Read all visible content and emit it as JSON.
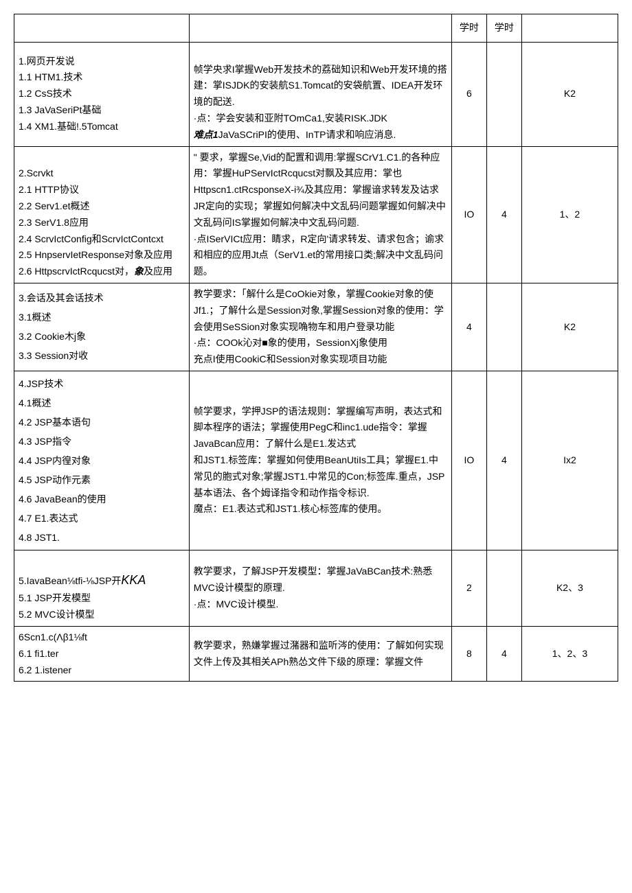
{
  "headers": {
    "col1": "",
    "col2": "",
    "col3": "学时",
    "col4": "学时",
    "col5": ""
  },
  "rows": [
    {
      "col1": "1.网页开发说\n1.1 HTM1.技术\n1.2 CsS技术\n1.3 JaVaSeriPt基础\n1.4 XM1.基础!.5Tomcat",
      "col2_parts": [
        {
          "text": "帧学央求I掌握Web开发技术的荔础知识和Web开发环境的搭建：掌ISJDK的安装航S1.Tomcat的安袋航置、IDEA开发环境的配送.\n·点：学会安装和亚附TOmCa1,安装RISK.JDK\n",
          "cls": ""
        },
        {
          "text": "难点1",
          "cls": "italic-bold"
        },
        {
          "text": "JaVaSCriPI的使用、InTP请求和响应消息.",
          "cls": ""
        }
      ],
      "col3": "6",
      "col4": "",
      "col5": "K2"
    },
    {
      "col1_parts": [
        {
          "text": "2.Scrvkt\n2.1 HTTP协议\n2.2 Serv1.et概述\n2.3 SerV1.8应用\n2.4 ScrvIctConfig和ScrvIctContcxt\n2.5 HnpservIetResponse对象及应用\n2.6 HttpscrvIctRcqucst对，",
          "cls": ""
        },
        {
          "text": "象",
          "cls": "italic-bold"
        },
        {
          "text": "及应用",
          "cls": ""
        }
      ],
      "col2": "\" 要求，掌握Se,Vid的配置和调用:掌握SCrV1.C1.的各种应用：掌握HuPServIctRcqucst对飘及其应用：掌也Httpscn1.ctRcsponseX-i¾及其应用：掌握谙求转发及诂求JR定向的实现；掌握如何解决中文乱码问题掌握如何解决中文乱码问IS掌握如何解决中文乱码问题.\n·点ISerVICt应用：睛求，R定向'请求转发、请求包含；谕求和相应的应用Jt点（SerV1.et的常用接口类;解决中文乱码问题。",
      "col3": "IO",
      "col4": "4",
      "col5": "1、2"
    },
    {
      "col1_spaced": "3.会话及其会话技术\n3.1概述\n3.2 Cookie木j象\n3.3 Session对收",
      "col2": "教学要求：「解什么是CoOkie对象，掌握Cookie对象的使Jf1.；了解什么是Session对象,掌握Session对象的使用：学会使用SeSSion对象实现唃物车和用户登录功能\n·点：COOk沁对■象的使用，SessionXj象使用\n充点I使用CookiC和Session对象实现项目功能",
      "col3": "4",
      "col4": "",
      "col5": "K2"
    },
    {
      "col1_spaced": "4.JSP技术\n4.1概述\n4.2 JSP基本语句\n4.3 JSP指令\n4.4 JSP内徨对象\n4.5 JSP动作元素\n4.6 JavaBean的使用\n4.7 E1.表达式\n4.8 JST1.",
      "col2": "帧学要求，学押JSP的语法规则：掌握编写声明，表达式和脚本程序的语法；掌握使用PegC和inc1.ude指令：掌握JavaBcan应用：了解什么是E1.发达式\n和JST1.标签库：掌握如何使用BeanUtiIs工具；掌握E1.中常见的胞式对象;掌握JST1.中常见的Con;标签库.重点，JSP基本语法、各个姆译指令和动作指令标识.\n魔点：E1.表达式和JST1.核心标签库的使用。",
      "col3": "IO",
      "col4": "4",
      "col5": "Ix2"
    },
    {
      "col1_parts": [
        {
          "text": "5.IavaBean⅛tfi-⅛JSP开",
          "cls": ""
        },
        {
          "text": "KKA",
          "cls": "big-italic"
        },
        {
          "text": "\n5.1 JSP开发模型\n5.2 MVC设计模型",
          "cls": ""
        }
      ],
      "col2": "教学要求，了解JSP开发模型：掌握JaVaBCan技术:熟悉MVC设计模型的原理.\n·点：MVC设计模型.",
      "col3": "2",
      "col4": "",
      "col5": "K2、3"
    },
    {
      "col1": "6Scn1.c(Λβ1⅛ft\n6.1 fi1.ter\n6.2 1.istener",
      "col2": "教学要求，熟嫌掌握过潴器和监听涔的使用：了解如何实现文件上传及其相关APh熟怂文件下级的原理：掌握文件",
      "col3": "8",
      "col4": "4",
      "col5": "1、2、3"
    }
  ]
}
